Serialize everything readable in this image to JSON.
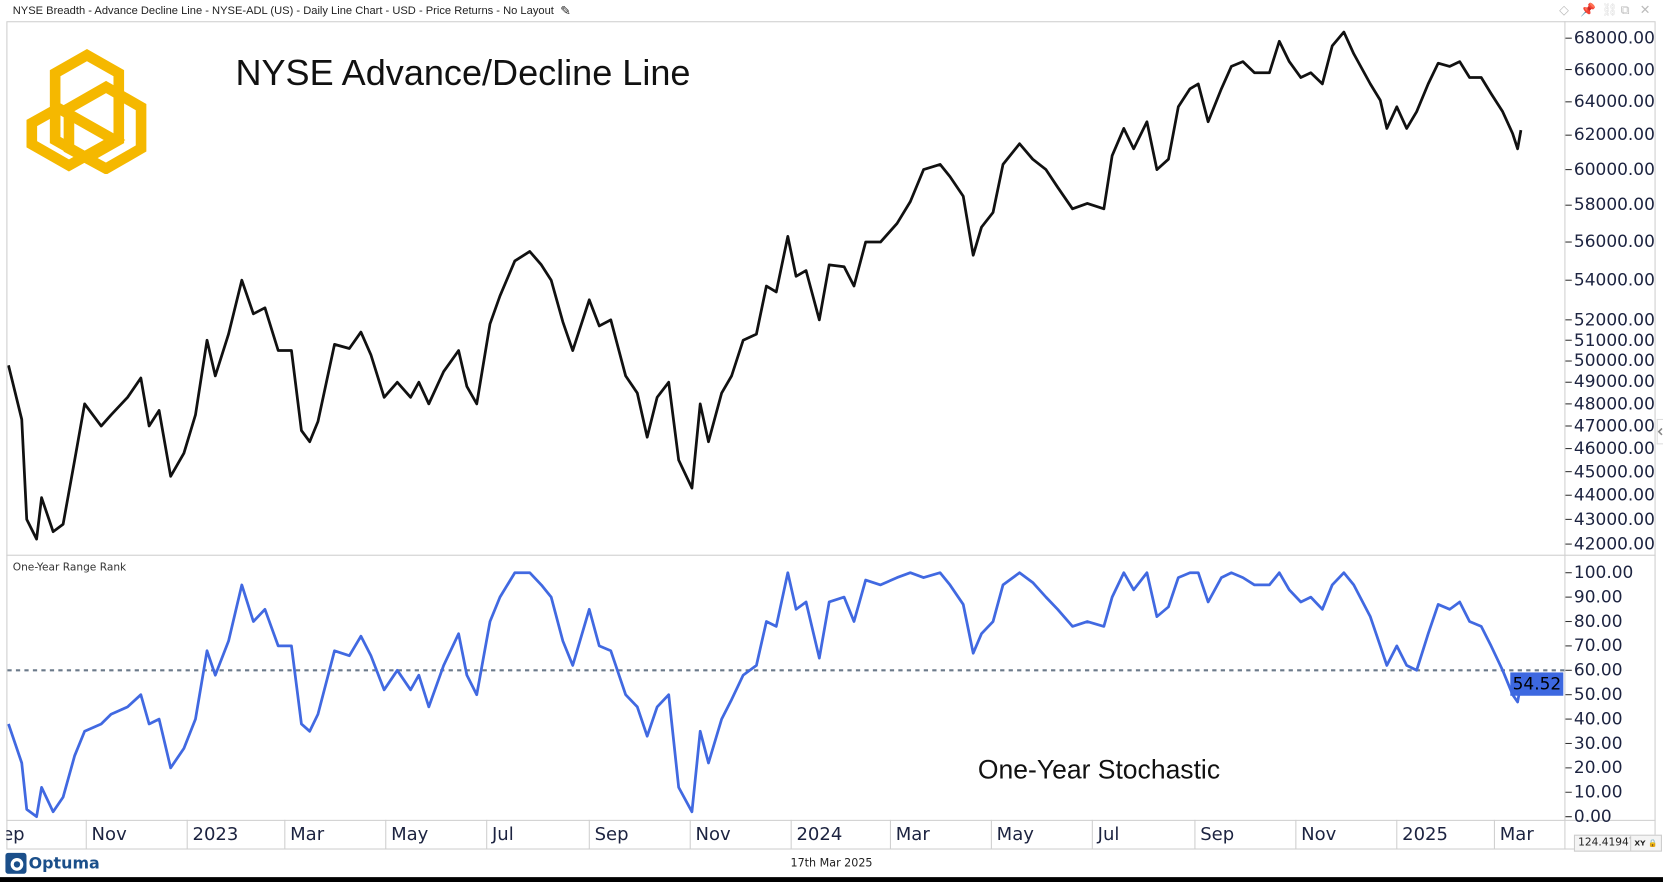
{
  "window": {
    "title": "NYSE Breadth - Advance Decline Line - NYSE-ADL (US) - Daily Line Chart - USD - Price Returns - No Layout",
    "icons": [
      "edit-pencil-icon",
      "diamond-icon",
      "pin-icon",
      "link-icon",
      "restore-icon",
      "close-icon"
    ]
  },
  "footer": {
    "date": "17th Mar 2025",
    "brand": "Optuma",
    "cursor_value": "124.41947",
    "xy_label": "XY"
  },
  "colors": {
    "ad_line": "#111111",
    "stochastic": "#4169e1",
    "logo": "#f5b800",
    "badge": "#3d68e0",
    "reference": "#6b7a8a"
  },
  "x_axis": {
    "ticks": [
      {
        "date": "2022-09-01",
        "label": "Sep"
      },
      {
        "date": "2022-11-01",
        "label": "Nov"
      },
      {
        "date": "2023-01-01",
        "label": "2023"
      },
      {
        "date": "2023-03-01",
        "label": "Mar"
      },
      {
        "date": "2023-05-01",
        "label": "May"
      },
      {
        "date": "2023-07-01",
        "label": "Jul"
      },
      {
        "date": "2023-09-01",
        "label": "Sep"
      },
      {
        "date": "2023-11-01",
        "label": "Nov"
      },
      {
        "date": "2024-01-01",
        "label": "2024"
      },
      {
        "date": "2024-03-01",
        "label": "Mar"
      },
      {
        "date": "2024-05-01",
        "label": "May"
      },
      {
        "date": "2024-07-01",
        "label": "Jul"
      },
      {
        "date": "2024-09-01",
        "label": "Sep"
      },
      {
        "date": "2024-11-01",
        "label": "Nov"
      },
      {
        "date": "2025-01-01",
        "label": "2025"
      },
      {
        "date": "2025-03-01",
        "label": "Mar"
      }
    ]
  },
  "chart_data": [
    {
      "type": "line",
      "title": "NYSE Advance/Decline Line",
      "scale": "log",
      "ylim": [
        42000,
        68000
      ],
      "grid": false,
      "yticks": [
        "68000.00",
        "66000.00",
        "64000.00",
        "62000.00",
        "60000.00",
        "58000.00",
        "56000.00",
        "54000.00",
        "52000.00",
        "51000.00",
        "50000.00",
        "49000.00",
        "48000.00",
        "47000.00",
        "46000.00",
        "45000.00",
        "44000.00",
        "43000.00",
        "42000.00"
      ],
      "x": [
        "2022-09-15",
        "2022-09-23",
        "2022-09-26",
        "2022-10-02",
        "2022-10-05",
        "2022-10-12",
        "2022-10-18",
        "2022-10-25",
        "2022-10-31",
        "2022-11-10",
        "2022-11-16",
        "2022-11-26",
        "2022-12-04",
        "2022-12-09",
        "2022-12-15",
        "2022-12-22",
        "2022-12-30",
        "2023-01-06",
        "2023-01-13",
        "2023-01-18",
        "2023-01-26",
        "2023-02-03",
        "2023-02-10",
        "2023-02-17",
        "2023-02-25",
        "2023-03-05",
        "2023-03-11",
        "2023-03-16",
        "2023-03-21",
        "2023-03-31",
        "2023-04-09",
        "2023-04-16",
        "2023-04-22",
        "2023-04-30",
        "2023-05-08",
        "2023-05-16",
        "2023-05-21",
        "2023-05-27",
        "2023-06-05",
        "2023-06-14",
        "2023-06-19",
        "2023-06-25",
        "2023-07-03",
        "2023-07-09",
        "2023-07-18",
        "2023-07-27",
        "2023-08-03",
        "2023-08-09",
        "2023-08-16",
        "2023-08-22",
        "2023-09-01",
        "2023-09-07",
        "2023-09-14",
        "2023-09-23",
        "2023-09-30",
        "2023-10-06",
        "2023-10-12",
        "2023-10-19",
        "2023-10-25",
        "2023-11-02",
        "2023-11-07",
        "2023-11-12",
        "2023-11-20",
        "2023-11-26",
        "2023-12-03",
        "2023-12-11",
        "2023-12-17",
        "2023-12-23",
        "2023-12-30",
        "2024-01-04",
        "2024-01-10",
        "2024-01-18",
        "2024-01-24",
        "2024-02-02",
        "2024-02-08",
        "2024-02-15",
        "2024-02-24",
        "2024-03-05",
        "2024-03-13",
        "2024-03-21",
        "2024-03-31",
        "2024-04-06",
        "2024-04-14",
        "2024-04-20",
        "2024-04-25",
        "2024-05-02",
        "2024-05-08",
        "2024-05-18",
        "2024-05-26",
        "2024-06-03",
        "2024-06-10",
        "2024-06-19",
        "2024-06-28",
        "2024-07-08",
        "2024-07-13",
        "2024-07-20",
        "2024-07-26",
        "2024-08-03",
        "2024-08-09",
        "2024-08-16",
        "2024-08-22",
        "2024-08-29",
        "2024-09-03",
        "2024-09-09",
        "2024-09-17",
        "2024-09-23",
        "2024-09-30",
        "2024-10-07",
        "2024-10-16",
        "2024-10-22",
        "2024-10-28",
        "2024-11-04",
        "2024-11-10",
        "2024-11-17",
        "2024-11-23",
        "2024-11-30",
        "2024-12-06",
        "2024-12-16",
        "2024-12-22",
        "2024-12-26",
        "2025-01-01",
        "2025-01-07",
        "2025-01-13",
        "2025-01-20",
        "2025-01-26",
        "2025-02-02",
        "2025-02-08",
        "2025-02-14",
        "2025-02-21",
        "2025-02-27",
        "2025-03-06",
        "2025-03-12",
        "2025-03-15",
        "2025-03-17"
      ],
      "values": [
        49800,
        47300,
        43000,
        42200,
        43900,
        42500,
        42800,
        45500,
        48000,
        47000,
        47500,
        48300,
        49200,
        47000,
        47700,
        44800,
        45800,
        47500,
        51000,
        49300,
        51300,
        54000,
        52300,
        52600,
        50500,
        50500,
        46800,
        46300,
        47200,
        50800,
        50600,
        51400,
        50300,
        48300,
        49000,
        48300,
        49000,
        48000,
        49500,
        50500,
        48800,
        48000,
        51800,
        53200,
        55000,
        55500,
        54800,
        54000,
        51900,
        50500,
        53000,
        51700,
        52000,
        49300,
        48500,
        46500,
        48300,
        49000,
        45500,
        44300,
        48000,
        46300,
        48500,
        49300,
        51000,
        51300,
        53700,
        53400,
        56300,
        54200,
        54500,
        52000,
        54800,
        54700,
        53700,
        56000,
        56000,
        57000,
        58200,
        60000,
        60300,
        59600,
        58500,
        55300,
        56800,
        57600,
        60300,
        61500,
        60600,
        60000,
        59000,
        57800,
        58100,
        57800,
        60800,
        62400,
        61200,
        62800,
        60000,
        60600,
        63700,
        64800,
        65100,
        62800,
        64800,
        66200,
        66500,
        65800,
        65800,
        67800,
        66500,
        65500,
        65800,
        65100,
        67500,
        68400,
        67000,
        65100,
        64100,
        62400,
        63700,
        62400,
        63400,
        65100,
        66400,
        66200,
        66500,
        65500,
        65500,
        64500,
        63400,
        62100,
        61200,
        62300
      ]
    },
    {
      "type": "line",
      "title": "One-Year Stochastic",
      "panel_label": "One-Year Range Rank",
      "ylim": [
        0,
        100
      ],
      "reference_line": 60,
      "last_value": "54.52",
      "yticks": [
        "100.00",
        "90.00",
        "80.00",
        "70.00",
        "60.00",
        "50.00",
        "40.00",
        "30.00",
        "20.00",
        "10.00",
        "0.00"
      ],
      "values": [
        38,
        22,
        3,
        0,
        12,
        2,
        8,
        25,
        35,
        38,
        42,
        45,
        50,
        38,
        40,
        20,
        28,
        40,
        68,
        58,
        72,
        95,
        80,
        85,
        70,
        70,
        38,
        35,
        42,
        68,
        66,
        74,
        66,
        52,
        60,
        52,
        58,
        45,
        62,
        75,
        58,
        50,
        80,
        90,
        100,
        100,
        95,
        90,
        72,
        62,
        85,
        70,
        68,
        50,
        45,
        33,
        45,
        50,
        12,
        2,
        35,
        22,
        40,
        48,
        58,
        62,
        80,
        78,
        100,
        85,
        88,
        65,
        88,
        90,
        80,
        97,
        95,
        98,
        100,
        98,
        100,
        95,
        87,
        67,
        75,
        80,
        95,
        100,
        96,
        90,
        85,
        78,
        80,
        78,
        90,
        100,
        93,
        100,
        82,
        86,
        98,
        100,
        100,
        88,
        98,
        100,
        98,
        95,
        95,
        100,
        93,
        88,
        90,
        85,
        95,
        100,
        95,
        82,
        70,
        62,
        70,
        62,
        60,
        75,
        87,
        85,
        88,
        80,
        78,
        70,
        60,
        50,
        47,
        54.52
      ]
    }
  ]
}
